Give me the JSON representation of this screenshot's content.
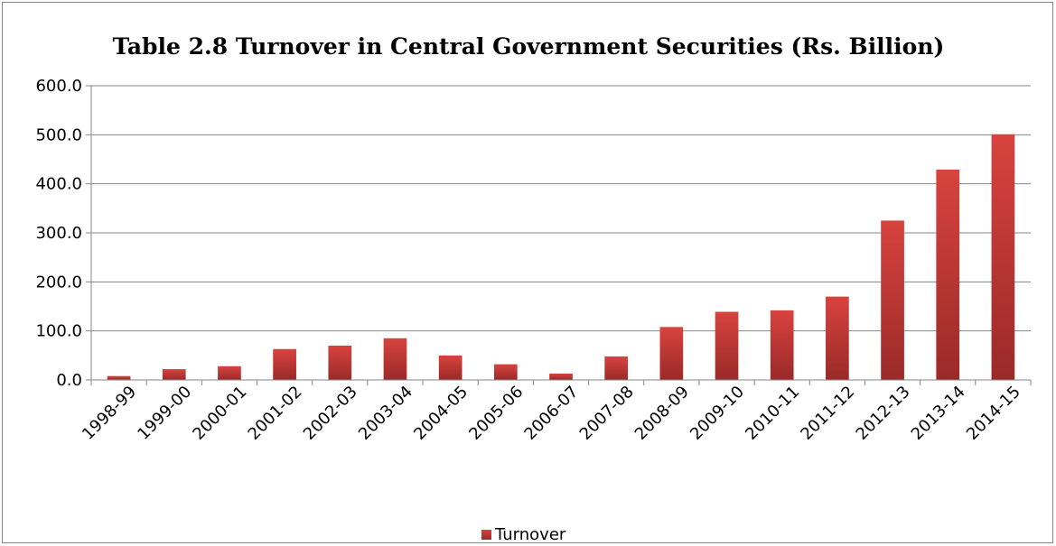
{
  "chart_data": {
    "type": "bar",
    "title": "Table 2.8 Turnover in Central Government Securities (Rs. Billion)",
    "xlabel": "",
    "ylabel": "",
    "ylim": [
      0,
      600
    ],
    "yticks": [
      "0.0",
      "100.0",
      "200.0",
      "300.0",
      "400.0",
      "500.0",
      "600.0"
    ],
    "categories": [
      "1998-99",
      "1999-00",
      "2000-01",
      "2001-02",
      "2002-03",
      "2003-04",
      "2004-05",
      "2005-06",
      "2006-07",
      "2007-08",
      "2008-09",
      "2009-10",
      "2010-11",
      "2011-12",
      "2012-13",
      "2013-14",
      "2014-15"
    ],
    "series": [
      {
        "name": "Turnover",
        "color": "#c0403d",
        "values": [
          8,
          22,
          28,
          63,
          70,
          85,
          50,
          32,
          13,
          48,
          108,
          139,
          142,
          170,
          325,
          429,
          501
        ]
      }
    ],
    "grid": true,
    "legend_position": "bottom"
  }
}
